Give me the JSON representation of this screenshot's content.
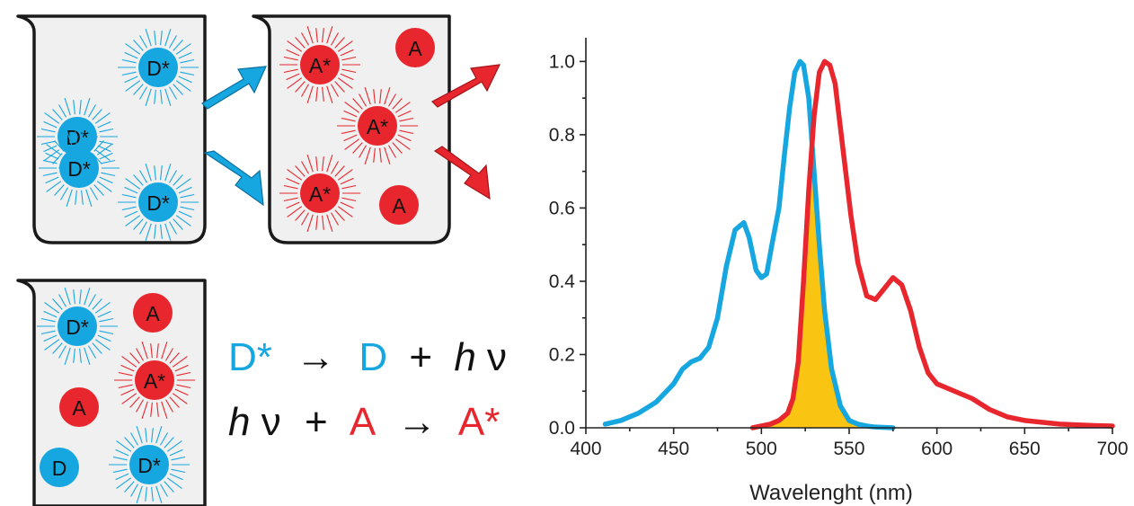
{
  "colors": {
    "donor": "#16a6e0",
    "acceptor": "#e8262d",
    "overlap": "#f9c412",
    "beaker_fill": "#f0f0f0",
    "beaker_stroke": "#1a1a1a",
    "text": "#111111"
  },
  "icons": [
    "beaker-icon",
    "arrow-icon",
    "right-arrow-icon"
  ],
  "beakers": [
    {
      "name": "donor-beaker",
      "particles": [
        {
          "label": "D*",
          "kind": "donor",
          "excited": true
        },
        {
          "label": "D*",
          "kind": "donor",
          "excited": true
        },
        {
          "label": "D*",
          "kind": "donor",
          "excited": true
        },
        {
          "label": "D*",
          "kind": "donor",
          "excited": true
        }
      ]
    },
    {
      "name": "acceptor-beaker",
      "particles": [
        {
          "label": "A*",
          "kind": "acceptor",
          "excited": true
        },
        {
          "label": "A",
          "kind": "acceptor",
          "excited": false
        },
        {
          "label": "A*",
          "kind": "acceptor",
          "excited": true
        },
        {
          "label": "A*",
          "kind": "acceptor",
          "excited": true
        },
        {
          "label": "A",
          "kind": "acceptor",
          "excited": false
        }
      ]
    },
    {
      "name": "mixed-beaker",
      "particles": [
        {
          "label": "D*",
          "kind": "donor",
          "excited": true
        },
        {
          "label": "A",
          "kind": "acceptor",
          "excited": false
        },
        {
          "label": "A*",
          "kind": "acceptor",
          "excited": true
        },
        {
          "label": "A",
          "kind": "acceptor",
          "excited": false
        },
        {
          "label": "D",
          "kind": "donor",
          "excited": false
        },
        {
          "label": "D*",
          "kind": "donor",
          "excited": true
        }
      ]
    }
  ],
  "equations": {
    "line1": {
      "reactant": "D*",
      "arrow": "→",
      "product": "D",
      "plus": "+",
      "photon_h": "h",
      "photon_nu": "ν"
    },
    "line2": {
      "photon_h": "h",
      "photon_nu": "ν",
      "plus": "+",
      "reactant": "A",
      "arrow": "→",
      "product": "A*"
    }
  },
  "chart_data": {
    "type": "line",
    "title": "",
    "xlabel": "Wavelenght (nm)",
    "ylabel": "",
    "xlim": [
      400,
      700
    ],
    "ylim": [
      0,
      1.05
    ],
    "x_ticks": [
      400,
      450,
      500,
      550,
      600,
      650,
      700
    ],
    "x_tick_labels": [
      "400",
      "450",
      "500",
      "550",
      "600",
      "650",
      "700"
    ],
    "y_ticks": [
      0.0,
      0.2,
      0.4,
      0.6,
      0.8,
      1.0
    ],
    "y_tick_labels": [
      "0.0",
      "0.2",
      "0.4",
      "0.6",
      "0.8",
      "1.0"
    ],
    "grid": false,
    "legend": "none",
    "series": [
      {
        "color": "#16a6e0",
        "x": [
          411,
          420,
          430,
          440,
          450,
          455,
          460,
          465,
          470,
          475,
          480,
          485,
          490,
          493,
          497,
          500,
          503,
          506,
          510,
          513,
          516,
          519,
          522,
          524,
          527,
          530,
          533,
          536,
          540,
          545,
          550,
          555,
          560,
          565,
          575
        ],
        "y": [
          0.01,
          0.02,
          0.04,
          0.07,
          0.12,
          0.16,
          0.18,
          0.19,
          0.22,
          0.3,
          0.44,
          0.54,
          0.56,
          0.52,
          0.43,
          0.41,
          0.42,
          0.5,
          0.6,
          0.74,
          0.87,
          0.97,
          1.0,
          0.99,
          0.9,
          0.7,
          0.5,
          0.32,
          0.16,
          0.06,
          0.02,
          0.01,
          0.005,
          0.002,
          0.0
        ]
      },
      {
        "color": "#e8262d",
        "x": [
          495,
          500,
          505,
          510,
          515,
          518,
          521,
          524,
          527,
          530,
          533,
          536,
          539,
          542,
          545,
          548,
          551,
          555,
          560,
          565,
          570,
          575,
          580,
          585,
          590,
          595,
          600,
          610,
          620,
          630,
          640,
          650,
          660,
          670,
          680,
          690,
          700
        ],
        "y": [
          0.0,
          0.005,
          0.01,
          0.02,
          0.04,
          0.08,
          0.18,
          0.4,
          0.65,
          0.85,
          0.97,
          1.0,
          0.99,
          0.94,
          0.82,
          0.7,
          0.58,
          0.45,
          0.36,
          0.35,
          0.38,
          0.41,
          0.39,
          0.32,
          0.22,
          0.15,
          0.12,
          0.1,
          0.08,
          0.05,
          0.03,
          0.02,
          0.015,
          0.01,
          0.008,
          0.006,
          0.005
        ]
      }
    ],
    "overlap_fill": {
      "color": "#f9c412"
    }
  }
}
